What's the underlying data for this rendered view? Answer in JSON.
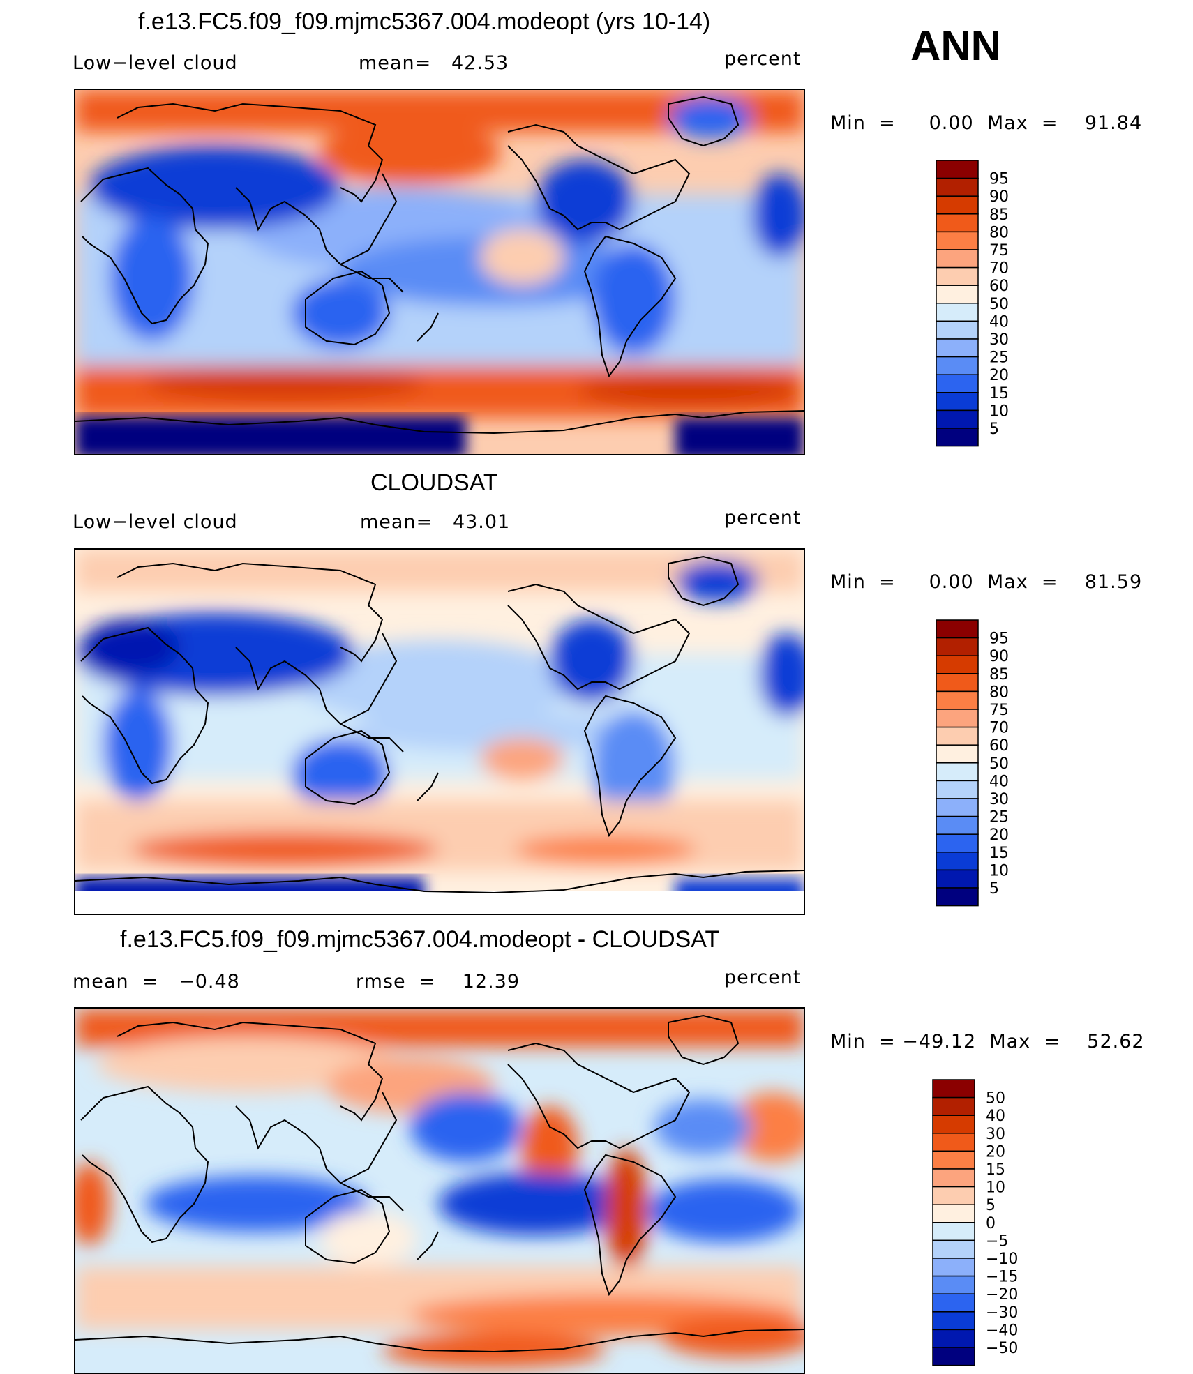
{
  "season": "ANN",
  "panels": [
    {
      "title": "f.e13.FC5.f09_f09.mjmc5367.004.modeopt (yrs 10-14)",
      "left": "Low−level cloud",
      "center": "mean=   42.53",
      "right": "percent",
      "minmax": "Min  =     0.00  Max  =    91.84"
    },
    {
      "title": "CLOUDSAT",
      "left": "Low−level cloud",
      "center": "mean=   43.01",
      "right": "percent",
      "minmax": "Min  =     0.00  Max  =    81.59"
    },
    {
      "title": "f.e13.FC5.f09_f09.mjmc5367.004.modeopt - CLOUDSAT",
      "left": "mean  =   −0.48",
      "center": "rmse  =    12.39",
      "right": "percent",
      "minmax": "Min  = −49.12  Max  =    52.62"
    }
  ],
  "colorbars": {
    "abs_labels": [
      "95",
      "90",
      "85",
      "80",
      "75",
      "70",
      "60",
      "50",
      "40",
      "30",
      "25",
      "20",
      "15",
      "10",
      "5"
    ],
    "abs_colors": [
      "#8b0000",
      "#b22000",
      "#d63b00",
      "#f05a1a",
      "#fc7f45",
      "#fca47e",
      "#fdcdb0",
      "#fff0e0",
      "#d6ecfa",
      "#b4d2fa",
      "#8cb0fa",
      "#5a8cf5",
      "#2c64f0",
      "#0a3cd6",
      "#0018b0",
      "#00007f"
    ],
    "diff_labels": [
      "50",
      "40",
      "30",
      "20",
      "15",
      "10",
      "5",
      "0",
      "−5",
      "−10",
      "−15",
      "−20",
      "−30",
      "−40",
      "−50"
    ],
    "diff_colors": [
      "#8b0000",
      "#b22000",
      "#d63b00",
      "#f05a1a",
      "#fc7f45",
      "#fca47e",
      "#fdcdb0",
      "#fff0e0",
      "#d6ecfa",
      "#b4d2fa",
      "#8cb0fa",
      "#5a8cf5",
      "#2c64f0",
      "#0a3cd6",
      "#0018b0",
      "#00007f"
    ]
  },
  "chart_data": [
    {
      "type": "heatmap",
      "title": "f.e13.FC5.f09_f09.mjmc5367.004.modeopt (yrs 10-14)",
      "variable": "Low−level cloud",
      "units": "percent",
      "mean": 42.53,
      "min": 0.0,
      "max": 91.84,
      "levels": [
        5,
        10,
        15,
        20,
        25,
        30,
        40,
        50,
        60,
        70,
        75,
        80,
        85,
        90,
        95
      ]
    },
    {
      "type": "heatmap",
      "title": "CLOUDSAT",
      "variable": "Low−level cloud",
      "units": "percent",
      "mean": 43.01,
      "min": 0.0,
      "max": 81.59,
      "levels": [
        5,
        10,
        15,
        20,
        25,
        30,
        40,
        50,
        60,
        70,
        75,
        80,
        85,
        90,
        95
      ]
    },
    {
      "type": "heatmap",
      "title": "f.e13.FC5.f09_f09.mjmc5367.004.modeopt - CLOUDSAT",
      "units": "percent",
      "mean": -0.48,
      "rmse": 12.39,
      "min": -49.12,
      "max": 52.62,
      "levels": [
        -50,
        -40,
        -30,
        -20,
        -15,
        -10,
        -5,
        0,
        5,
        10,
        15,
        20,
        30,
        40,
        50
      ]
    }
  ]
}
